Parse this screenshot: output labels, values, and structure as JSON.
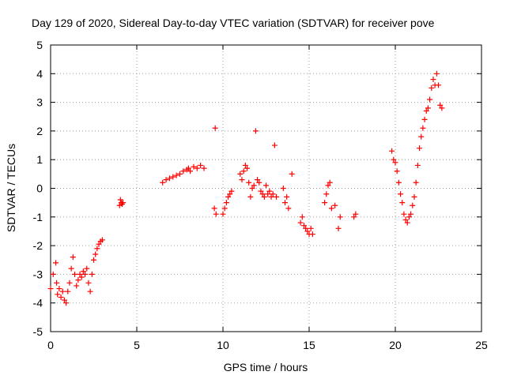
{
  "chart_data": {
    "type": "scatter",
    "title": "Day 129 of 2020, Sidereal Day-to-day VTEC variation (SDTVAR) for receiver pove",
    "xlabel": "GPS time / hours",
    "ylabel": "SDTVAR / TECUs",
    "xlim": [
      0,
      25
    ],
    "ylim": [
      -5,
      5
    ],
    "xticks": [
      0,
      5,
      10,
      15,
      20,
      25
    ],
    "yticks": [
      -5,
      -4,
      -3,
      -2,
      -1,
      0,
      1,
      2,
      3,
      4,
      5
    ],
    "grid": true,
    "marker": "+",
    "series": [
      {
        "name": "SDTVAR",
        "color": "#ff0000",
        "x": [
          0.0,
          0.15,
          0.3,
          0.35,
          0.4,
          0.5,
          0.6,
          0.7,
          0.8,
          0.9,
          1.0,
          1.1,
          1.2,
          1.3,
          1.4,
          1.5,
          1.6,
          1.7,
          1.8,
          1.9,
          2.0,
          2.1,
          2.2,
          2.3,
          2.4,
          2.5,
          2.6,
          2.7,
          2.8,
          2.9,
          3.0,
          4.0,
          4.05,
          4.1,
          4.15,
          4.2,
          6.5,
          6.7,
          6.9,
          7.1,
          7.3,
          7.5,
          7.7,
          7.9,
          8.0,
          8.1,
          8.3,
          8.5,
          8.7,
          8.9,
          9.5,
          9.55,
          9.6,
          10.0,
          10.1,
          10.2,
          10.3,
          10.4,
          10.5,
          11.0,
          11.1,
          11.2,
          11.3,
          11.4,
          11.5,
          11.6,
          11.7,
          11.8,
          11.9,
          12.0,
          12.1,
          12.2,
          12.3,
          12.4,
          12.5,
          12.6,
          12.7,
          12.8,
          12.9,
          13.0,
          13.1,
          13.5,
          13.6,
          13.7,
          13.8,
          14.0,
          14.5,
          14.6,
          14.7,
          14.8,
          14.9,
          15.0,
          15.1,
          15.2,
          15.9,
          16.0,
          16.1,
          16.2,
          16.3,
          16.5,
          16.7,
          16.8,
          17.6,
          17.7,
          19.8,
          19.9,
          20.0,
          20.1,
          20.2,
          20.3,
          20.4,
          20.5,
          20.6,
          20.7,
          20.8,
          20.9,
          21.0,
          21.1,
          21.2,
          21.3,
          21.4,
          21.5,
          21.6,
          21.7,
          21.8,
          21.9,
          22.0,
          22.1,
          22.2,
          22.3,
          22.4,
          22.5,
          22.6,
          22.7
        ],
        "y": [
          -3.5,
          -3.0,
          -2.6,
          -3.3,
          -3.7,
          -3.5,
          -3.8,
          -3.6,
          -3.9,
          -4.0,
          -3.6,
          -3.3,
          -2.8,
          -2.4,
          -3.0,
          -3.4,
          -3.2,
          -3.0,
          -3.1,
          -2.9,
          -3.0,
          -2.8,
          -3.3,
          -3.6,
          -3.0,
          -2.5,
          -2.3,
          -2.1,
          -1.95,
          -1.85,
          -1.8,
          -0.6,
          -0.4,
          -0.5,
          -0.55,
          -0.5,
          0.2,
          0.3,
          0.35,
          0.4,
          0.45,
          0.5,
          0.6,
          0.65,
          0.7,
          0.6,
          0.75,
          0.7,
          0.8,
          0.7,
          -0.7,
          2.1,
          -0.9,
          -0.9,
          -0.7,
          -0.5,
          -0.3,
          -0.2,
          -0.1,
          0.5,
          0.3,
          0.6,
          0.8,
          0.7,
          0.2,
          -0.3,
          0.0,
          0.1,
          2.0,
          0.3,
          0.2,
          -0.1,
          -0.2,
          -0.3,
          0.1,
          -0.2,
          -0.1,
          -0.3,
          -0.2,
          1.5,
          -0.3,
          0.0,
          -0.5,
          -0.3,
          -0.7,
          0.5,
          -1.2,
          -1.0,
          -1.3,
          -1.4,
          -1.5,
          -1.6,
          -1.4,
          -1.6,
          -0.5,
          -0.2,
          0.1,
          0.2,
          -0.7,
          -0.6,
          -1.4,
          -1.0,
          -1.0,
          -0.9,
          1.3,
          1.0,
          0.9,
          0.6,
          0.2,
          -0.2,
          -0.5,
          -0.9,
          -1.1,
          -1.2,
          -1.0,
          -0.9,
          -0.6,
          -0.3,
          0.2,
          0.8,
          1.4,
          1.8,
          2.1,
          2.4,
          2.7,
          2.8,
          3.1,
          3.5,
          3.8,
          3.6,
          4.0,
          3.6,
          2.9,
          2.8
        ]
      }
    ]
  }
}
